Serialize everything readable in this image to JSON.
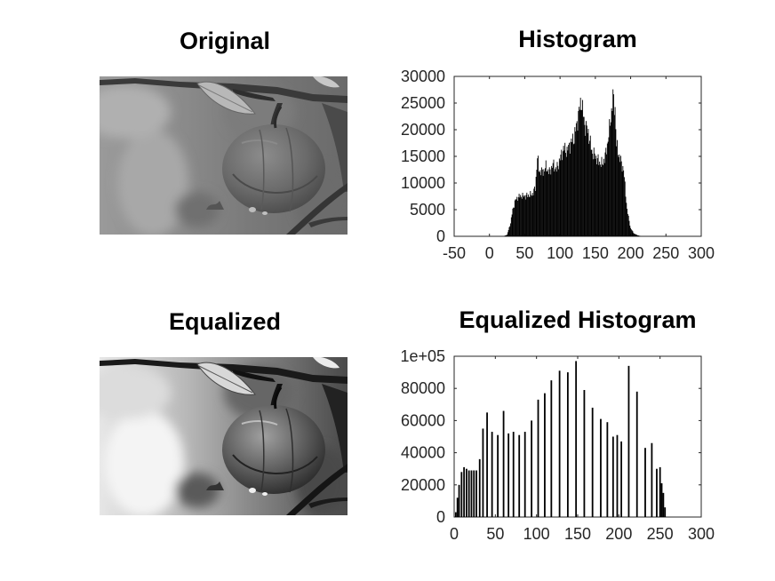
{
  "titles": {
    "original": "Original",
    "histogram": "Histogram",
    "equalized": "Equalized",
    "equalized_histogram": "Equalized Histogram"
  },
  "images": {
    "original": {
      "content": "grayscale photo of an apple hanging on a branch with a leaf",
      "contrast": "low"
    },
    "equalized": {
      "content": "histogram-equalized grayscale photo of the same apple",
      "contrast": "high"
    }
  },
  "colors": {
    "bars": "#000000",
    "axes": "#262626",
    "background": "#ffffff"
  },
  "chart_data": [
    {
      "type": "bar",
      "title": "Histogram",
      "xlabel": "",
      "ylabel": "",
      "xlim": [
        -50,
        300
      ],
      "ylim": [
        0,
        30000
      ],
      "xticks": [
        "-50",
        "0",
        "50",
        "100",
        "150",
        "200",
        "250",
        "300"
      ],
      "yticks": [
        "0",
        "5000",
        "10000",
        "15000",
        "20000",
        "25000",
        "30000"
      ],
      "grid": false,
      "profile": [
        [
          20,
          0
        ],
        [
          25,
          300
        ],
        [
          30,
          2500
        ],
        [
          33,
          5000
        ],
        [
          37,
          6800
        ],
        [
          40,
          7300
        ],
        [
          45,
          7600
        ],
        [
          50,
          7500
        ],
        [
          55,
          7700
        ],
        [
          60,
          7800
        ],
        [
          65,
          9000
        ],
        [
          68,
          15000
        ],
        [
          70,
          12500
        ],
        [
          75,
          12000
        ],
        [
          80,
          13000
        ],
        [
          85,
          12000
        ],
        [
          90,
          13500
        ],
        [
          95,
          12500
        ],
        [
          100,
          14500
        ],
        [
          105,
          16500
        ],
        [
          110,
          16000
        ],
        [
          115,
          17500
        ],
        [
          120,
          18500
        ],
        [
          125,
          22000
        ],
        [
          130,
          25500
        ],
        [
          135,
          21000
        ],
        [
          140,
          19500
        ],
        [
          145,
          16000
        ],
        [
          150,
          15000
        ],
        [
          155,
          14000
        ],
        [
          160,
          13500
        ],
        [
          165,
          15500
        ],
        [
          170,
          20000
        ],
        [
          175,
          26000
        ],
        [
          178,
          24000
        ],
        [
          180,
          17000
        ],
        [
          185,
          14500
        ],
        [
          190,
          12500
        ],
        [
          195,
          5000
        ],
        [
          200,
          1500
        ],
        [
          205,
          500
        ],
        [
          210,
          200
        ],
        [
          215,
          0
        ]
      ]
    },
    {
      "type": "bar",
      "title": "Equalized Histogram",
      "xlabel": "",
      "ylabel": "",
      "xlim": [
        0,
        300
      ],
      "ylim": [
        0,
        100000
      ],
      "xticks": [
        "0",
        "50",
        "100",
        "150",
        "200",
        "250",
        "300"
      ],
      "yticks": [
        "0",
        "20000",
        "40000",
        "60000",
        "80000",
        "1e+05"
      ],
      "grid": false,
      "x": [
        2,
        4,
        6,
        9,
        12,
        15,
        18,
        21,
        24,
        27,
        31,
        35,
        40,
        46,
        53,
        60,
        66,
        72,
        79,
        86,
        94,
        102,
        110,
        118,
        128,
        138,
        148,
        158,
        168,
        178,
        186,
        193,
        198,
        203,
        212,
        222,
        232,
        240,
        246,
        250,
        252,
        254,
        256
      ],
      "values": [
        3000,
        12000,
        20000,
        28000,
        31000,
        30000,
        29000,
        29000,
        29000,
        29000,
        36000,
        55000,
        65000,
        53000,
        51000,
        66000,
        52000,
        53000,
        51000,
        53000,
        60000,
        73000,
        77000,
        85000,
        91000,
        90000,
        97000,
        79000,
        68000,
        61000,
        59000,
        50000,
        51000,
        47000,
        94000,
        78000,
        43000,
        46000,
        30000,
        31000,
        21000,
        15000,
        6000
      ]
    }
  ]
}
